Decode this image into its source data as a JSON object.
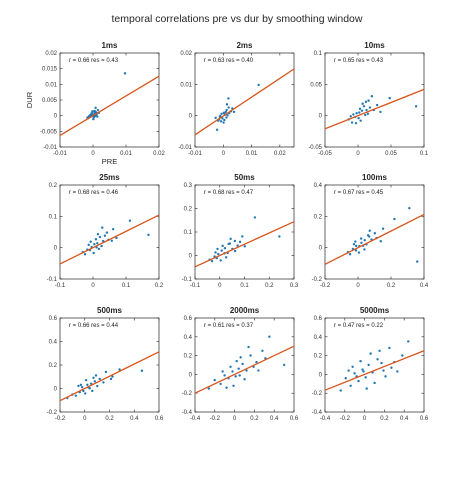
{
  "figure": {
    "title": "temporal correlations pre vs dur by smoothing window"
  },
  "colors": {
    "points": "#1f77b4",
    "fit_line": "#d9541a",
    "axes": "#262626"
  },
  "chart_data": [
    {
      "type": "scatter",
      "title": "1ms",
      "stat_label": "r = 0.66 res = 0.43",
      "xlabel": "PRE",
      "ylabel": "DUR",
      "xlim": [
        -0.01,
        0.02
      ],
      "ylim": [
        -0.01,
        0.02
      ],
      "xticks": [
        -0.01,
        0,
        0.01,
        0.02
      ],
      "xtick_labels": [
        "-0.01",
        "0",
        "0.01",
        "0.02"
      ],
      "yticks": [
        -0.01,
        -0.005,
        0,
        0.005,
        0.01,
        0.015,
        0.02
      ],
      "ytick_labels": [
        "-0.01",
        "-0.005",
        "0",
        "0.005",
        "0.01",
        "0.015",
        "0.02"
      ],
      "fit": {
        "slope": 0.63,
        "intercept": 0.0
      },
      "points": [
        [
          0.0097,
          0.0135
        ],
        [
          0.0008,
          0.0025
        ],
        [
          0.0015,
          0.0018
        ],
        [
          0.0004,
          0.0012
        ],
        [
          -0.0002,
          0.0006
        ],
        [
          0.0006,
          0.0006
        ],
        [
          -0.0006,
          0.0003
        ],
        [
          0.0002,
          0.0001
        ],
        [
          -0.0003,
          -0.0002
        ],
        [
          0.0007,
          -0.0001
        ],
        [
          -0.0009,
          -0.0004
        ],
        [
          0.0003,
          -0.0005
        ],
        [
          -0.0014,
          -0.0008
        ],
        [
          0.0011,
          0.0004
        ],
        [
          -0.0004,
          0.0008
        ],
        [
          0.0018,
          0.0009
        ],
        [
          -0.0008,
          0.0002
        ],
        [
          0.0001,
          -0.0011
        ],
        [
          -0.0012,
          -0.0002
        ],
        [
          0.0005,
          0.0015
        ],
        [
          0.0013,
          -0.0003
        ],
        [
          -0.0017,
          -0.0006
        ],
        [
          0.0009,
          0.0011
        ],
        [
          -0.0002,
          0.0014
        ],
        [
          0.0003,
          0.0003
        ]
      ]
    },
    {
      "type": "scatter",
      "title": "2ms",
      "stat_label": "r = 0.63 res = 0.40",
      "xlim": [
        -0.01,
        0.025
      ],
      "ylim": [
        -0.01,
        0.02
      ],
      "xticks": [
        -0.01,
        0,
        0.01,
        0.02
      ],
      "xtick_labels": [
        "-0.01",
        "0",
        "0.01",
        "0.02"
      ],
      "yticks": [
        -0.01,
        0,
        0.01,
        0.02
      ],
      "ytick_labels": [
        "-0.01",
        "0",
        "0.01",
        "0.02"
      ],
      "fit": {
        "slope": 0.6,
        "intercept": -0.0001
      },
      "points": [
        [
          0.0125,
          0.0098
        ],
        [
          0.0018,
          0.0055
        ],
        [
          0.0032,
          0.0023
        ],
        [
          -0.0022,
          -0.0045
        ],
        [
          -0.0015,
          -0.0012
        ],
        [
          0.0005,
          0.0003
        ],
        [
          0.0012,
          0.0018
        ],
        [
          -0.0008,
          -0.0018
        ],
        [
          0.0021,
          0.0008
        ],
        [
          -0.0003,
          -0.0009
        ],
        [
          0.0009,
          0.0012
        ],
        [
          -0.0012,
          -0.0004
        ],
        [
          0.0015,
          0.0001
        ],
        [
          -0.0006,
          0.0006
        ],
        [
          0.0004,
          -0.0014
        ],
        [
          0.0027,
          0.0014
        ],
        [
          -0.0018,
          -0.0016
        ],
        [
          0.0002,
          0.0009
        ],
        [
          0.0011,
          -0.0006
        ],
        [
          -0.0027,
          -0.0007
        ],
        [
          0.0019,
          0.0026
        ],
        [
          0.0007,
          0.0004
        ],
        [
          -0.0011,
          -0.0001
        ],
        [
          0.0013,
          0.0036
        ],
        [
          0.0038,
          0.0012
        ],
        [
          0.0001,
          -0.0022
        ]
      ]
    },
    {
      "type": "scatter",
      "title": "10ms",
      "stat_label": "r = 0.65 res = 0.43",
      "xlim": [
        -0.05,
        0.1
      ],
      "ylim": [
        -0.05,
        0.1
      ],
      "xticks": [
        -0.05,
        0,
        0.05,
        0.1
      ],
      "xtick_labels": [
        "-0.05",
        "0",
        "0.05",
        "0.1"
      ],
      "yticks": [
        -0.05,
        0,
        0.05,
        0.1
      ],
      "ytick_labels": [
        "-0.05",
        "0",
        "0.05",
        "0.1"
      ],
      "fit": {
        "slope": 0.42,
        "intercept": 0.0
      },
      "points": [
        [
          0.088,
          0.015
        ],
        [
          0.048,
          0.028
        ],
        [
          0.021,
          0.031
        ],
        [
          0.012,
          0.022
        ],
        [
          0.006,
          0.008
        ],
        [
          -0.004,
          -0.002
        ],
        [
          0.009,
          0.015
        ],
        [
          0.015,
          0.003
        ],
        [
          -0.009,
          -0.011
        ],
        [
          0.003,
          0.011
        ],
        [
          0.018,
          0.013
        ],
        [
          -0.014,
          -0.006
        ],
        [
          0.024,
          0.009
        ],
        [
          0.001,
          -0.004
        ],
        [
          -0.002,
          0.004
        ],
        [
          0.011,
          0.001
        ],
        [
          0.007,
          0.019
        ],
        [
          -0.007,
          0.002
        ],
        [
          0.029,
          0.017
        ],
        [
          0.004,
          -0.008
        ],
        [
          -0.011,
          -0.001
        ],
        [
          0.016,
          0.024
        ],
        [
          0.034,
          0.006
        ],
        [
          -0.003,
          -0.012
        ],
        [
          0.013,
          0.009
        ],
        [
          0.002,
          0.005
        ]
      ]
    },
    {
      "type": "scatter",
      "title": "25ms",
      "stat_label": "r = 0.68 res = 0.46",
      "xlim": [
        -0.1,
        0.2
      ],
      "ylim": [
        -0.1,
        0.2
      ],
      "xticks": [
        -0.1,
        0,
        0.1,
        0.2
      ],
      "xtick_labels": [
        "-0.1",
        "0",
        "0.1",
        "0.2"
      ],
      "yticks": [
        -0.1,
        0,
        0.1,
        0.2
      ],
      "ytick_labels": [
        "-0.1",
        "0",
        "0.1",
        "0.2"
      ],
      "fit": {
        "slope": 0.52,
        "intercept": 0.0
      },
      "points": [
        [
          0.168,
          0.041
        ],
        [
          0.112,
          0.086
        ],
        [
          0.061,
          0.059
        ],
        [
          0.042,
          0.048
        ],
        [
          0.021,
          0.034
        ],
        [
          0.013,
          0.014
        ],
        [
          -0.009,
          -0.008
        ],
        [
          0.031,
          0.021
        ],
        [
          0.004,
          0.011
        ],
        [
          -0.017,
          -0.006
        ],
        [
          0.026,
          0.005
        ],
        [
          -0.024,
          -0.021
        ],
        [
          0.009,
          0.027
        ],
        [
          0.047,
          0.025
        ],
        [
          -0.004,
          0.002
        ],
        [
          0.018,
          -0.004
        ],
        [
          -0.013,
          0.009
        ],
        [
          0.036,
          0.038
        ],
        [
          0.057,
          0.022
        ],
        [
          -0.031,
          -0.014
        ],
        [
          0.002,
          -0.017
        ],
        [
          0.015,
          0.043
        ],
        [
          0.071,
          0.031
        ],
        [
          -0.007,
          0.019
        ],
        [
          0.028,
          0.064
        ],
        [
          0.011,
          0.001
        ]
      ]
    },
    {
      "type": "scatter",
      "title": "50ms",
      "stat_label": "r = 0.68 res = 0.47",
      "xlim": [
        -0.1,
        0.3
      ],
      "ylim": [
        -0.1,
        0.3
      ],
      "xticks": [
        -0.1,
        0,
        0.1,
        0.2,
        0.3
      ],
      "xtick_labels": [
        "-0.1",
        "0",
        "0.1",
        "0.2",
        "0.3"
      ],
      "yticks": [
        -0.1,
        0,
        0.1,
        0.2,
        0.3
      ],
      "ytick_labels": [
        "-0.1",
        "0",
        "0.1",
        "0.2",
        "0.3"
      ],
      "fit": {
        "slope": 0.48,
        "intercept": 0.0
      },
      "points": [
        [
          0.241,
          0.081
        ],
        [
          0.142,
          0.162
        ],
        [
          0.091,
          0.081
        ],
        [
          0.061,
          0.062
        ],
        [
          0.041,
          0.051
        ],
        [
          0.021,
          0.031
        ],
        [
          -0.012,
          -0.011
        ],
        [
          0.032,
          0.011
        ],
        [
          0.008,
          0.021
        ],
        [
          -0.021,
          -0.004
        ],
        [
          0.051,
          0.028
        ],
        [
          -0.031,
          -0.024
        ],
        [
          0.012,
          0.041
        ],
        [
          0.072,
          0.042
        ],
        [
          -0.006,
          0.006
        ],
        [
          0.026,
          -0.008
        ],
        [
          -0.017,
          0.013
        ],
        [
          0.044,
          0.071
        ],
        [
          0.101,
          0.039
        ],
        [
          -0.041,
          -0.018
        ],
        [
          0.004,
          -0.021
        ],
        [
          0.019,
          0.009
        ],
        [
          0.082,
          0.058
        ],
        [
          -0.009,
          0.028
        ],
        [
          0.036,
          0.049
        ],
        [
          0.062,
          0.019
        ]
      ]
    },
    {
      "type": "scatter",
      "title": "100ms",
      "stat_label": "r = 0.67 res = 0.45",
      "xlim": [
        -0.2,
        0.4
      ],
      "ylim": [
        -0.2,
        0.4
      ],
      "xticks": [
        -0.2,
        0,
        0.2,
        0.4
      ],
      "xtick_labels": [
        "-0.2",
        "0",
        "0.2",
        "0.4"
      ],
      "yticks": [
        -0.2,
        0,
        0.2,
        0.4
      ],
      "ytick_labels": [
        "-0.2",
        "0",
        "0.2",
        "0.4"
      ],
      "fit": {
        "slope": 0.53,
        "intercept": 0.0
      },
      "points": [
        [
          0.311,
          0.252
        ],
        [
          0.221,
          0.183
        ],
        [
          0.152,
          0.121
        ],
        [
          0.102,
          0.092
        ],
        [
          0.068,
          0.071
        ],
        [
          0.041,
          0.048
        ],
        [
          0.021,
          0.031
        ],
        [
          -0.012,
          -0.018
        ],
        [
          0.051,
          0.021
        ],
        [
          0.008,
          0.009
        ],
        [
          -0.031,
          -0.008
        ],
        [
          0.082,
          0.052
        ],
        [
          -0.048,
          -0.042
        ],
        [
          0.019,
          0.058
        ],
        [
          0.112,
          0.061
        ],
        [
          -0.011,
          0.011
        ],
        [
          0.039,
          -0.011
        ],
        [
          -0.024,
          0.022
        ],
        [
          0.071,
          0.108
        ],
        [
          0.138,
          0.041
        ],
        [
          -0.061,
          -0.028
        ],
        [
          0.006,
          -0.031
        ],
        [
          0.031,
          0.012
        ],
        [
          0.359,
          -0.089
        ],
        [
          -0.016,
          0.039
        ],
        [
          0.061,
          0.079
        ]
      ]
    },
    {
      "type": "scatter",
      "title": "500ms",
      "stat_label": "r = 0.66 res = 0.44",
      "xlim": [
        -0.2,
        0.6
      ],
      "ylim": [
        -0.2,
        0.6
      ],
      "xticks": [
        -0.2,
        0,
        0.2,
        0.4,
        0.6
      ],
      "xtick_labels": [
        "-0.2",
        "0",
        "0.2",
        "0.4",
        "0.6"
      ],
      "yticks": [
        -0.2,
        0,
        0.2,
        0.4,
        0.6
      ],
      "ytick_labels": [
        "-0.2",
        "0",
        "0.2",
        "0.4",
        "0.6"
      ],
      "fit": {
        "slope": 0.52,
        "intercept": 0.0
      },
      "points": [
        [
          0.462,
          0.151
        ],
        [
          0.281,
          0.162
        ],
        [
          0.224,
          0.101
        ],
        [
          0.171,
          0.141
        ],
        [
          0.121,
          0.081
        ],
        [
          0.081,
          0.061
        ],
        [
          0.052,
          0.041
        ],
        [
          0.021,
          0.031
        ],
        [
          -0.011,
          -0.021
        ],
        [
          0.041,
          0.002
        ],
        [
          -0.041,
          -0.031
        ],
        [
          0.101,
          0.021
        ],
        [
          -0.072,
          -0.061
        ],
        [
          0.011,
          0.071
        ],
        [
          0.151,
          0.052
        ],
        [
          -0.021,
          0.011
        ],
        [
          0.061,
          -0.021
        ],
        [
          -0.031,
          0.031
        ],
        [
          0.091,
          0.111
        ],
        [
          -0.101,
          -0.052
        ],
        [
          0.004,
          -0.042
        ],
        [
          0.031,
          0.009
        ],
        [
          -0.141,
          -0.081
        ],
        [
          0.071,
          0.091
        ],
        [
          -0.051,
          0.022
        ],
        [
          0.212,
          0.081
        ]
      ]
    },
    {
      "type": "scatter",
      "title": "2000ms",
      "stat_label": "r = 0.61 res = 0.37",
      "xlim": [
        -0.4,
        0.6
      ],
      "ylim": [
        -0.4,
        0.6
      ],
      "xticks": [
        -0.4,
        -0.2,
        0,
        0.2,
        0.4,
        0.6
      ],
      "xtick_labels": [
        "-0.4",
        "-0.2",
        "0",
        "0.2",
        "0.4",
        "0.6"
      ],
      "yticks": [
        -0.4,
        -0.2,
        0,
        0.2,
        0.4,
        0.6
      ],
      "ytick_labels": [
        "-0.4",
        "-0.2",
        "0",
        "0.2",
        "0.4",
        "0.6"
      ],
      "fit": {
        "slope": 0.5,
        "intercept": 0.0
      },
      "points": [
        [
          0.501,
          0.101
        ],
        [
          0.351,
          0.401
        ],
        [
          0.281,
          0.251
        ],
        [
          0.221,
          0.131
        ],
        [
          0.161,
          0.201
        ],
        [
          0.121,
          0.041
        ],
        [
          0.081,
          0.111
        ],
        [
          0.041,
          0.061
        ],
        [
          0.011,
          -0.021
        ],
        [
          -0.021,
          0.031
        ],
        [
          -0.061,
          -0.041
        ],
        [
          -0.101,
          -0.011
        ],
        [
          -0.141,
          -0.101
        ],
        [
          -0.201,
          -0.061
        ],
        [
          -0.261,
          -0.151
        ],
        [
          0.061,
          0.181
        ],
        [
          0.101,
          -0.051
        ],
        [
          -0.041,
          0.081
        ],
        [
          0.021,
          0.141
        ],
        [
          0.191,
          0.081
        ],
        [
          -0.121,
          0.031
        ],
        [
          0.141,
          0.291
        ],
        [
          -0.011,
          -0.121
        ],
        [
          0.241,
          0.041
        ],
        [
          -0.081,
          -0.141
        ],
        [
          0.311,
          0.171
        ],
        [
          0.051,
          -0.011
        ]
      ]
    },
    {
      "type": "scatter",
      "title": "5000ms",
      "stat_label": "r = 0.47 res = 0.22",
      "xlim": [
        -0.4,
        0.6
      ],
      "ylim": [
        -0.4,
        0.6
      ],
      "xticks": [
        -0.4,
        -0.2,
        0,
        0.2,
        0.4,
        0.6
      ],
      "xtick_labels": [
        "-0.4",
        "-0.2",
        "0",
        "0.2",
        "0.4",
        "0.6"
      ],
      "yticks": [
        -0.4,
        -0.2,
        0,
        0.2,
        0.4,
        0.6
      ],
      "ytick_labels": [
        "-0.4",
        "-0.2",
        "0",
        "0.2",
        "0.4",
        "0.6"
      ],
      "fit": {
        "slope": 0.42,
        "intercept": 0.0
      },
      "points": [
        [
          0.441,
          0.351
        ],
        [
          0.381,
          0.201
        ],
        [
          0.301,
          0.131
        ],
        [
          0.251,
          0.281
        ],
        [
          0.191,
          0.041
        ],
        [
          0.131,
          0.161
        ],
        [
          0.081,
          0.021
        ],
        [
          0.041,
          0.101
        ],
        [
          0.011,
          -0.031
        ],
        [
          -0.021,
          0.051
        ],
        [
          -0.061,
          -0.071
        ],
        [
          -0.101,
          0.011
        ],
        [
          -0.141,
          -0.121
        ],
        [
          -0.191,
          -0.041
        ],
        [
          -0.241,
          -0.171
        ],
        [
          0.061,
          0.221
        ],
        [
          0.101,
          -0.091
        ],
        [
          -0.041,
          0.141
        ],
        [
          0.021,
          -0.151
        ],
        [
          0.171,
          0.121
        ],
        [
          -0.121,
          0.081
        ],
        [
          0.211,
          -0.021
        ],
        [
          -0.011,
          0.031
        ],
        [
          0.271,
          0.071
        ],
        [
          -0.081,
          -0.021
        ],
        [
          0.331,
          0.031
        ],
        [
          0.151,
          0.251
        ],
        [
          -0.161,
          0.041
        ]
      ]
    }
  ]
}
